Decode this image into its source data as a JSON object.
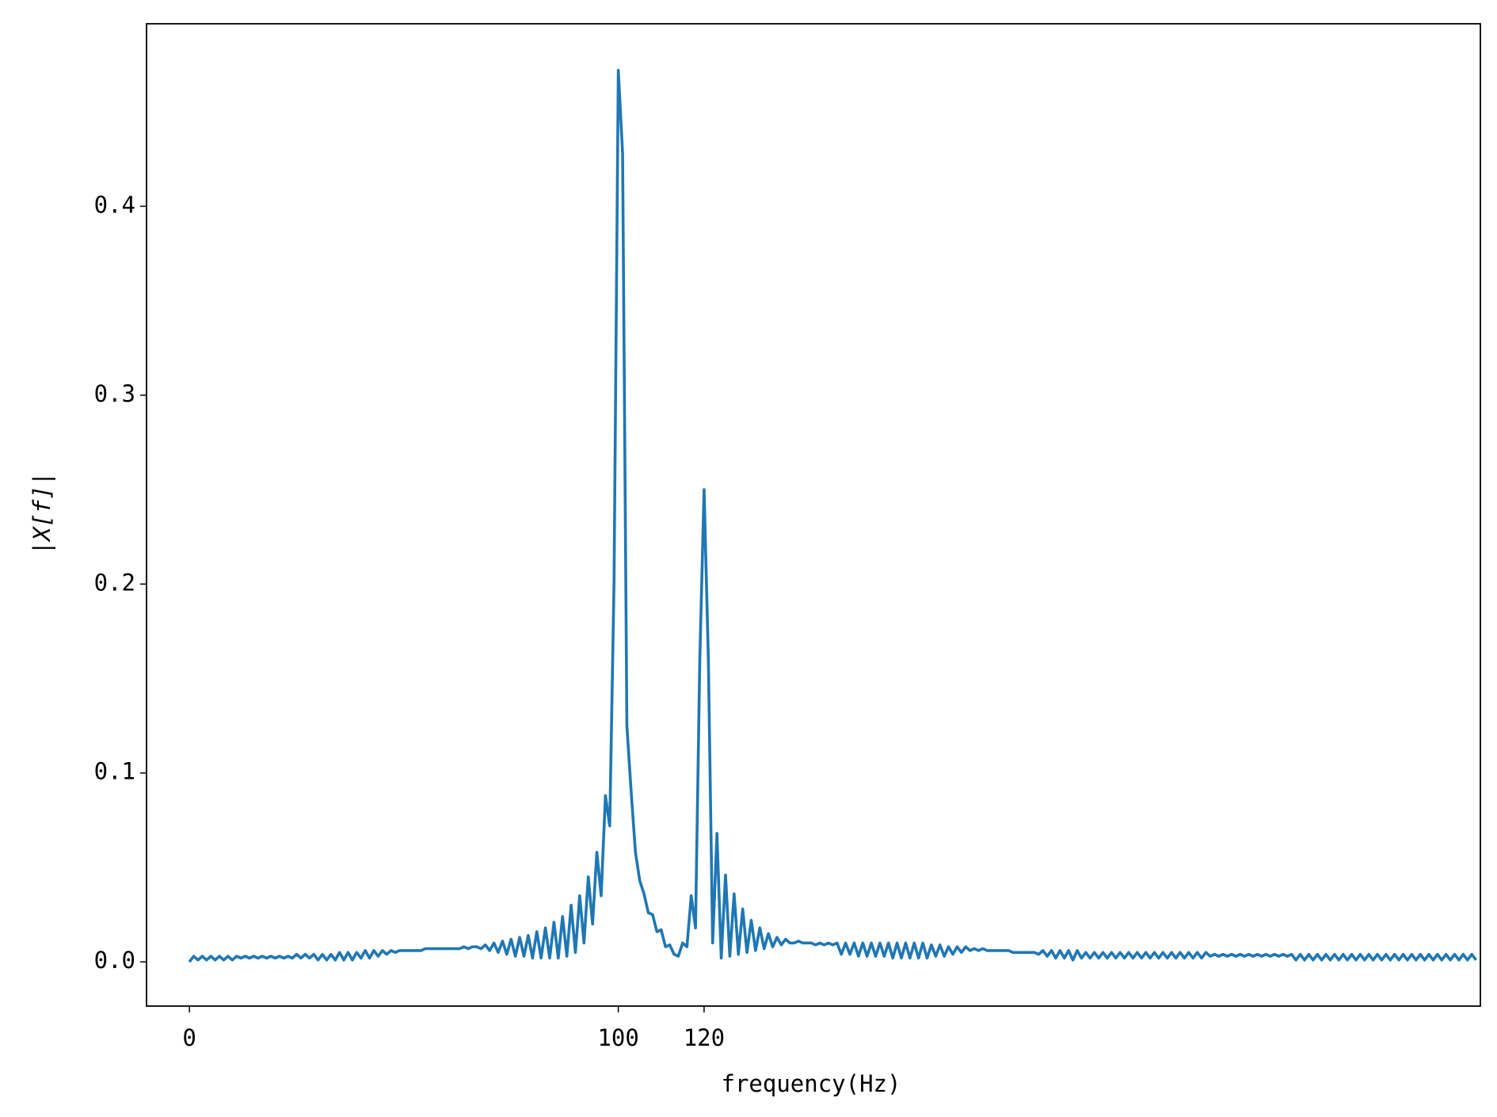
{
  "chart_data": {
    "type": "line",
    "x_label": "frequency(Hz)",
    "y_label": "|X[f]|",
    "color": "#1f77b4",
    "xlim": [
      -10,
      301
    ],
    "ylim": [
      -0.0234,
      0.4966
    ],
    "xticks": [
      0,
      100,
      120
    ],
    "yticks": [
      {
        "value": 0,
        "label": "0.0"
      },
      0.1,
      0.2,
      0.3,
      0.4
    ],
    "x": [
      0,
      1,
      2,
      3,
      4,
      5,
      6,
      7,
      8,
      9,
      10,
      11,
      12,
      13,
      14,
      15,
      16,
      17,
      18,
      19,
      20,
      21,
      22,
      23,
      24,
      25,
      26,
      27,
      28,
      29,
      30,
      31,
      32,
      33,
      34,
      35,
      36,
      37,
      38,
      39,
      40,
      41,
      42,
      43,
      44,
      45,
      46,
      47,
      48,
      49,
      50,
      51,
      52,
      53,
      54,
      55,
      56,
      57,
      58,
      59,
      60,
      61,
      62,
      63,
      64,
      65,
      66,
      67,
      68,
      69,
      70,
      71,
      72,
      73,
      74,
      75,
      76,
      77,
      78,
      79,
      80,
      81,
      82,
      83,
      84,
      85,
      86,
      87,
      88,
      89,
      90,
      91,
      92,
      93,
      94,
      95,
      96,
      97,
      98,
      99,
      100,
      101,
      102,
      103,
      104,
      105,
      106,
      107,
      108,
      109,
      110,
      111,
      112,
      113,
      114,
      115,
      116,
      117,
      118,
      119,
      120,
      121,
      122,
      123,
      124,
      125,
      126,
      127,
      128,
      129,
      130,
      131,
      132,
      133,
      134,
      135,
      136,
      137,
      138,
      139,
      140,
      141,
      142,
      143,
      144,
      145,
      146,
      147,
      148,
      149,
      150,
      151,
      152,
      153,
      154,
      155,
      156,
      157,
      158,
      159,
      160,
      161,
      162,
      163,
      164,
      165,
      166,
      167,
      168,
      169,
      170,
      171,
      172,
      173,
      174,
      175,
      176,
      177,
      178,
      179,
      180,
      181,
      182,
      183,
      184,
      185,
      186,
      187,
      188,
      189,
      190,
      191,
      192,
      193,
      194,
      195,
      196,
      197,
      198,
      199,
      200,
      201,
      202,
      203,
      204,
      205,
      206,
      207,
      208,
      209,
      210,
      211,
      212,
      213,
      214,
      215,
      216,
      217,
      218,
      219,
      220,
      221,
      222,
      223,
      224,
      225,
      226,
      227,
      228,
      229,
      230,
      231,
      232,
      233,
      234,
      235,
      236,
      237,
      238,
      239,
      240,
      241,
      242,
      243,
      244,
      245,
      246,
      247,
      248,
      249,
      250,
      251,
      252,
      253,
      254,
      255,
      256,
      257,
      258,
      259,
      260,
      261,
      262,
      263,
      264,
      265,
      266,
      267,
      268,
      269,
      270,
      271,
      272,
      273,
      274,
      275,
      276,
      277,
      278,
      279,
      280,
      281,
      282,
      283,
      284,
      285,
      286,
      287,
      288,
      289,
      290,
      291,
      292,
      293,
      294,
      295,
      296,
      297,
      298,
      299,
      300
    ],
    "values": [
      0,
      0.003,
      0.001,
      0.003,
      0.001,
      0.003,
      0.001,
      0.003,
      0.001,
      0.003,
      0.001,
      0.003,
      0.002,
      0.003,
      0.002,
      0.003,
      0.002,
      0.003,
      0.002,
      0.003,
      0.002,
      0.003,
      0.002,
      0.003,
      0.002,
      0.004,
      0.002,
      0.004,
      0.002,
      0.004,
      0.001,
      0.004,
      0.001,
      0.004,
      0.001,
      0.005,
      0.001,
      0.005,
      0.001,
      0.005,
      0.002,
      0.006,
      0.002,
      0.006,
      0.003,
      0.006,
      0.004,
      0.006,
      0.005,
      0.006,
      0.006,
      0.006,
      0.006,
      0.006,
      0.006,
      0.007,
      0.007,
      0.007,
      0.007,
      0.007,
      0.007,
      0.007,
      0.007,
      0.007,
      0.008,
      0.007,
      0.008,
      0.008,
      0.007,
      0.009,
      0.006,
      0.01,
      0.005,
      0.011,
      0.004,
      0.012,
      0.003,
      0.013,
      0.003,
      0.014,
      0.002,
      0.016,
      0.002,
      0.018,
      0.002,
      0.021,
      0.002,
      0.024,
      0.003,
      0.03,
      0.005,
      0.035,
      0.01,
      0.045,
      0.02,
      0.058,
      0.035,
      0.088,
      0.072,
      0.2,
      0.472,
      0.428,
      0.125,
      0.09,
      0.058,
      0.043,
      0.036,
      0.026,
      0.025,
      0.016,
      0.017,
      0.008,
      0.009,
      0.004,
      0.003,
      0.01,
      0.008,
      0.035,
      0.018,
      0.16,
      0.25,
      0.16,
      0.01,
      0.068,
      0.002,
      0.046,
      0.003,
      0.036,
      0.004,
      0.028,
      0.005,
      0.022,
      0.006,
      0.018,
      0.007,
      0.015,
      0.008,
      0.013,
      0.009,
      0.012,
      0.01,
      0.01,
      0.011,
      0.01,
      0.01,
      0.01,
      0.009,
      0.01,
      0.009,
      0.01,
      0.009,
      0.01,
      0.004,
      0.01,
      0.004,
      0.01,
      0.003,
      0.01,
      0.003,
      0.01,
      0.003,
      0.01,
      0.003,
      0.01,
      0.002,
      0.01,
      0.002,
      0.01,
      0.002,
      0.01,
      0.002,
      0.01,
      0.002,
      0.009,
      0.003,
      0.009,
      0.003,
      0.008,
      0.004,
      0.008,
      0.005,
      0.008,
      0.006,
      0.007,
      0.006,
      0.007,
      0.006,
      0.006,
      0.006,
      0.006,
      0.006,
      0.006,
      0.005,
      0.005,
      0.005,
      0.005,
      0.005,
      0.005,
      0.004,
      0.006,
      0.003,
      0.006,
      0.002,
      0.006,
      0.002,
      0.006,
      0.001,
      0.006,
      0.002,
      0.005,
      0.002,
      0.005,
      0.002,
      0.005,
      0.002,
      0.005,
      0.002,
      0.005,
      0.002,
      0.005,
      0.002,
      0.005,
      0.002,
      0.005,
      0.002,
      0.005,
      0.002,
      0.005,
      0.002,
      0.005,
      0.002,
      0.005,
      0.002,
      0.005,
      0.002,
      0.005,
      0.002,
      0.005,
      0.003,
      0.004,
      0.003,
      0.004,
      0.003,
      0.004,
      0.003,
      0.004,
      0.003,
      0.004,
      0.003,
      0.004,
      0.003,
      0.004,
      0.003,
      0.004,
      0.003,
      0.004,
      0.003,
      0.004,
      0.001,
      0.004,
      0.001,
      0.004,
      0.001,
      0.004,
      0.001,
      0.004,
      0.001,
      0.004,
      0.001,
      0.004,
      0.001,
      0.004,
      0.001,
      0.004,
      0.001,
      0.004,
      0.001,
      0.004,
      0.001,
      0.004,
      0.001,
      0.004,
      0.001,
      0.004,
      0.001,
      0.004,
      0.001,
      0.004,
      0.001,
      0.004,
      0.001,
      0.004,
      0.001,
      0.004,
      0.001,
      0.004,
      0.001,
      0.004,
      0.001,
      0.004,
      0.001
    ]
  }
}
